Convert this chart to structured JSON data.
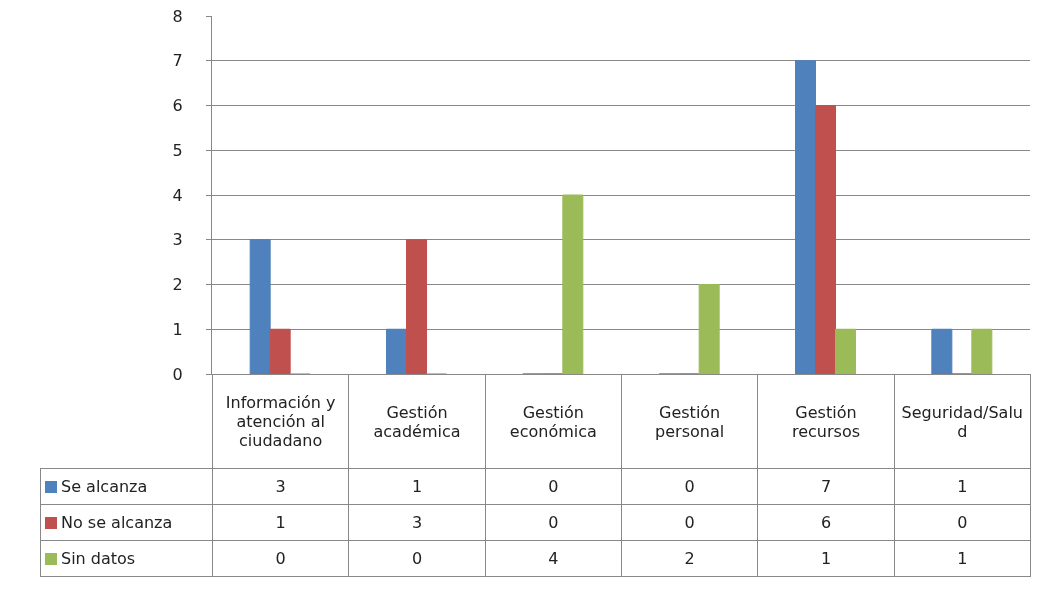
{
  "chart_data": {
    "type": "bar",
    "categories": [
      "Información y atención al ciudadano",
      "Gestión académica",
      "Gestión económica",
      "Gestión personal",
      "Gestión recursos",
      "Seguridad/Salud"
    ],
    "series": [
      {
        "name": "Se alcanza",
        "color": "#4f81bd",
        "values": [
          3,
          1,
          0,
          0,
          7,
          1
        ]
      },
      {
        "name": "No se alcanza",
        "color": "#c0504d",
        "values": [
          1,
          3,
          0,
          0,
          6,
          0
        ]
      },
      {
        "name": "Sin datos",
        "color": "#9bbb59",
        "values": [
          0,
          0,
          4,
          2,
          1,
          1
        ]
      }
    ],
    "ylim": [
      0,
      8
    ],
    "yticks": [
      0,
      1,
      2,
      3,
      4,
      5,
      6,
      7,
      8
    ],
    "grid": "y",
    "data_labels": true,
    "legend": "bottom left"
  }
}
